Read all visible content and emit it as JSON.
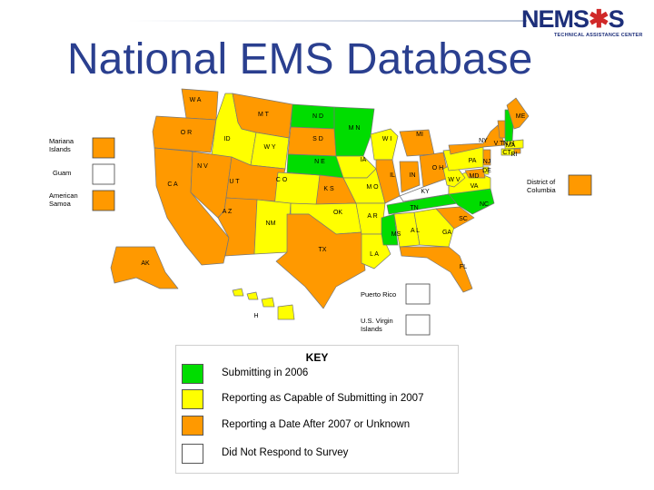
{
  "title": "National EMS Database",
  "logo": {
    "name_part1": "NEMS",
    "star_glyph": "✱",
    "name_part2": "S",
    "subtitle": "TECHNICAL ASSISTANCE CENTER"
  },
  "colors": {
    "submitting": "#00dd00",
    "capable": "#ffff00",
    "after2007": "#ff9900",
    "no_response": "#ffffff",
    "title": "#2a3f8f",
    "state_border": "#777777"
  },
  "legend": {
    "title": "KEY",
    "items": [
      {
        "status": "submitting",
        "label": "Submitting in 2006"
      },
      {
        "status": "capable",
        "label": "Reporting as Capable of Submitting in 2007"
      },
      {
        "status": "after2007",
        "label": "Reporting a Date After 2007 or Unknown"
      },
      {
        "status": "no_response",
        "label": "Did Not Respond to Survey"
      }
    ]
  },
  "territories": [
    {
      "key": "mp",
      "label_lines": [
        "Mariana",
        "Islands"
      ],
      "status": "after2007"
    },
    {
      "key": "gu",
      "label_lines": [
        "Guam"
      ],
      "status": "no_response"
    },
    {
      "key": "as",
      "label_lines": [
        "American",
        "Samoa"
      ],
      "status": "after2007"
    },
    {
      "key": "dc",
      "label_lines": [
        "District of",
        "Columbia"
      ],
      "status": "after2007"
    },
    {
      "key": "pr",
      "label_lines": [
        "Puerto Rico"
      ],
      "status": "no_response"
    },
    {
      "key": "vi",
      "label_lines": [
        "U.S. Virgin",
        "Islands"
      ],
      "status": "no_response"
    }
  ],
  "states": [
    {
      "key": "wa",
      "label": "W A",
      "status": "after2007"
    },
    {
      "key": "or",
      "label": "O R",
      "status": "after2007"
    },
    {
      "key": "ca",
      "label": "C A",
      "status": "after2007"
    },
    {
      "key": "id",
      "label": "ID",
      "status": "capable"
    },
    {
      "key": "nv",
      "label": "N V",
      "status": "after2007"
    },
    {
      "key": "mt",
      "label": "M T",
      "status": "after2007"
    },
    {
      "key": "wy",
      "label": "W Y",
      "status": "capable"
    },
    {
      "key": "ut",
      "label": "U T",
      "status": "after2007"
    },
    {
      "key": "az",
      "label": "A Z",
      "status": "after2007"
    },
    {
      "key": "co",
      "label": "C O",
      "status": "capable"
    },
    {
      "key": "nm",
      "label": "NM",
      "status": "capable"
    },
    {
      "key": "nd",
      "label": "N D",
      "status": "submitting"
    },
    {
      "key": "sd",
      "label": "S D",
      "status": "after2007"
    },
    {
      "key": "ne",
      "label": "N E",
      "status": "submitting"
    },
    {
      "key": "ks",
      "label": "K S",
      "status": "after2007"
    },
    {
      "key": "ok",
      "label": "OK",
      "status": "capable"
    },
    {
      "key": "tx",
      "label": "TX",
      "status": "after2007"
    },
    {
      "key": "mn",
      "label": "M N",
      "status": "submitting"
    },
    {
      "key": "ia",
      "label": "IA",
      "status": "capable"
    },
    {
      "key": "mo",
      "label": "M O",
      "status": "capable"
    },
    {
      "key": "ar",
      "label": "A R",
      "status": "capable"
    },
    {
      "key": "la",
      "label": "L A",
      "status": "capable"
    },
    {
      "key": "wi",
      "label": "W I",
      "status": "capable"
    },
    {
      "key": "il",
      "label": "IL",
      "status": "after2007"
    },
    {
      "key": "mi",
      "label": "MI",
      "status": "after2007"
    },
    {
      "key": "in",
      "label": "IN",
      "status": "after2007"
    },
    {
      "key": "oh",
      "label": "O H",
      "status": "after2007"
    },
    {
      "key": "ky",
      "label": "KY",
      "status": "no_response"
    },
    {
      "key": "tn",
      "label": "TN",
      "status": "submitting"
    },
    {
      "key": "ms",
      "label": "MS",
      "status": "submitting"
    },
    {
      "key": "al",
      "label": "A L",
      "status": "capable"
    },
    {
      "key": "ga",
      "label": "GA",
      "status": "capable"
    },
    {
      "key": "fl",
      "label": "FL",
      "status": "after2007"
    },
    {
      "key": "sc",
      "label": "SC",
      "status": "after2007"
    },
    {
      "key": "nc",
      "label": "NC",
      "status": "submitting"
    },
    {
      "key": "va",
      "label": "VA",
      "status": "capable"
    },
    {
      "key": "wv",
      "label": "W V",
      "status": "capable"
    },
    {
      "key": "pa",
      "label": "PA",
      "status": "capable"
    },
    {
      "key": "ny",
      "label": "NY",
      "status": "after2007"
    },
    {
      "key": "vt",
      "label": "V T",
      "status": "after2007"
    },
    {
      "key": "nh",
      "label": "N H",
      "status": "submitting"
    },
    {
      "key": "me",
      "label": "ME",
      "status": "after2007"
    },
    {
      "key": "ma",
      "label": "MA",
      "status": "capable"
    },
    {
      "key": "ri",
      "label": "RI",
      "status": "after2007"
    },
    {
      "key": "ct",
      "label": "CT",
      "status": "capable"
    },
    {
      "key": "nj",
      "label": "NJ",
      "status": "after2007"
    },
    {
      "key": "de",
      "label": "DE",
      "status": "capable"
    },
    {
      "key": "md",
      "label": "MD",
      "status": "after2007"
    },
    {
      "key": "ak",
      "label": "AK",
      "status": "after2007"
    },
    {
      "key": "hi",
      "label": "H",
      "status": "capable"
    }
  ]
}
